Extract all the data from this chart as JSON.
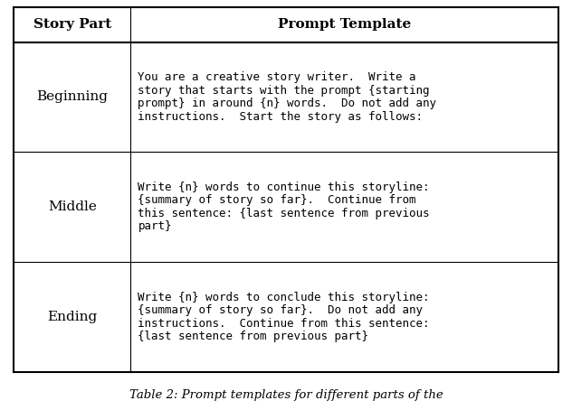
{
  "header": [
    "Story Part",
    "Prompt Template"
  ],
  "rows": [
    {
      "part": "Beginning",
      "prompt_lines": [
        "You are a creative story writer.  Write a",
        "story that starts with the prompt {starting",
        "prompt} in around {n} words.  Do not add any",
        "instructions.  Start the story as follows:"
      ]
    },
    {
      "part": "Middle",
      "prompt_lines": [
        "Write {n} words to continue this storyline:",
        "{summary of story so far}.  Continue from",
        "this sentence: {last sentence from previous",
        "part}"
      ]
    },
    {
      "part": "Ending",
      "prompt_lines": [
        "Write {n} words to conclude this storyline:",
        "{summary of story so far}.  Do not add any",
        "instructions.  Continue from this sentence:",
        "{last sentence from previous part}"
      ]
    }
  ],
  "bg_color": "#ffffff",
  "caption": "Table 2: Prompt templates for different parts of the"
}
